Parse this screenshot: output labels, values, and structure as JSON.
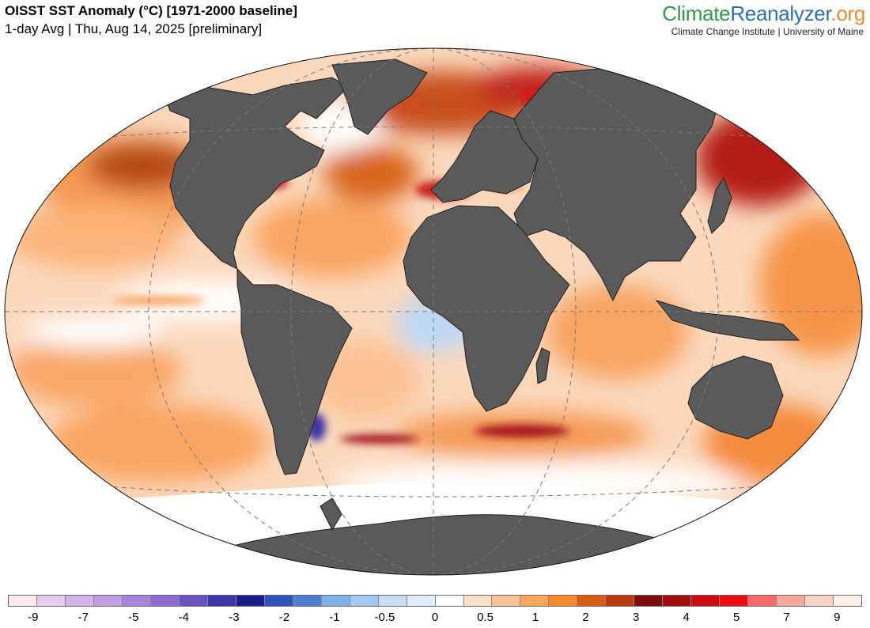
{
  "header": {
    "title": "OISST SST Anomaly (°C) [1971-2000 baseline]",
    "subtitle": "1-day Avg | Thu, Aug 14, 2025 [preliminary]"
  },
  "brand": {
    "part1": "Climate",
    "part2": "Reanalyzer",
    "part3": ".org",
    "color1": "#2e9a46",
    "color2": "#2c6fb6",
    "color3": "#f08a24",
    "subtitle": "Climate Change Institute | University of Maine"
  },
  "map": {
    "projection": "robinson-like",
    "ocean_neutral_color": "#ffffff",
    "land_color": "#5a5a5a",
    "graticule": "dashed"
  },
  "colorbar": {
    "colors": [
      "#fde9ef",
      "#e6ccef",
      "#d3b3ea",
      "#c09de4",
      "#a685dd",
      "#8c6bd2",
      "#6a52c2",
      "#3d36a6",
      "#1a1c8c",
      "#2f52b8",
      "#4f7fd1",
      "#7eb0ea",
      "#a3c8f2",
      "#c6dcf7",
      "#e2eefb",
      "#ffffff",
      "#fde0c8",
      "#fcc291",
      "#fca65c",
      "#f98b2c",
      "#d85e14",
      "#b93c0a",
      "#7d0d0d",
      "#a10c0c",
      "#cc0c12",
      "#f00c12",
      "#f86a6a",
      "#f9a898",
      "#fad2c4",
      "#fdeeea"
    ],
    "labels": [
      "-9",
      "-7",
      "-5",
      "-4",
      "-3",
      "-2",
      "-1",
      "-0.5",
      "0",
      "0.5",
      "1",
      "2",
      "3",
      "4",
      "5",
      "7",
      "9"
    ]
  }
}
